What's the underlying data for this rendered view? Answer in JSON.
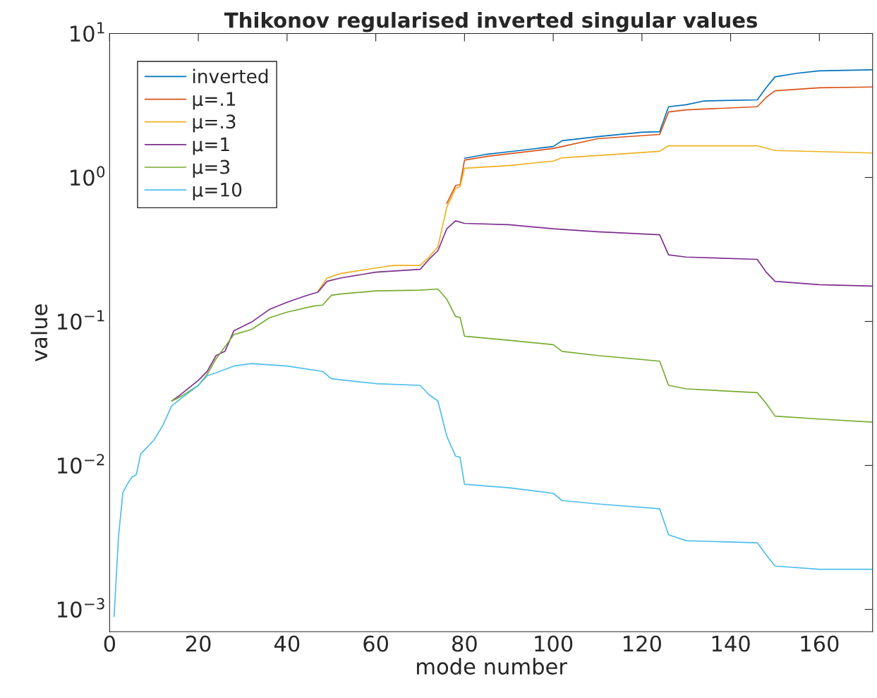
{
  "chart_data": {
    "type": "line",
    "title": "Thikonov regularised inverted singular values",
    "xlabel": "mode number",
    "ylabel": "value",
    "log": "y",
    "grid": false,
    "legend": "top left",
    "marker": "none",
    "line_style": "solid",
    "xlim": [
      0,
      172
    ],
    "xticks": [
      0,
      20,
      40,
      60,
      80,
      100,
      120,
      140,
      160
    ],
    "ylim": [
      0.0007,
      10
    ],
    "yticks": [
      {
        "value": 0.001,
        "label": "10$^{−3}$"
      },
      {
        "value": 0.01,
        "label": "10$^{−2}$"
      },
      {
        "value": 0.1,
        "label": "10$^{−1}$"
      },
      {
        "value": 1,
        "label": "10$^{0}$"
      },
      {
        "value": 10,
        "label": "10$^{1}$"
      }
    ],
    "series": [
      {
        "name": "inverted",
        "color": "#0072bd",
        "x": [
          80,
          85,
          90,
          100,
          102,
          110,
          120,
          124,
          126,
          130,
          134,
          146,
          148,
          150,
          155,
          160,
          172
        ],
        "values": [
          1.36,
          1.45,
          1.51,
          1.64,
          1.8,
          1.92,
          2.06,
          2.08,
          3.1,
          3.2,
          3.4,
          3.46,
          4.2,
          5.0,
          5.3,
          5.5,
          5.6
        ]
      },
      {
        "name": "μ=.1",
        "color": "#d95319",
        "x": [
          76,
          78,
          79,
          80,
          85,
          90,
          100,
          110,
          124,
          126,
          130,
          146,
          148,
          150,
          160,
          172
        ],
        "values": [
          0.66,
          0.88,
          0.89,
          1.32,
          1.4,
          1.46,
          1.59,
          1.86,
          1.99,
          2.85,
          2.95,
          3.1,
          3.6,
          4.0,
          4.2,
          4.25
        ]
      },
      {
        "name": "μ=.3",
        "color": "#edb120",
        "x": [
          47,
          49,
          52,
          56,
          60,
          64,
          70,
          72,
          74,
          76,
          78,
          79,
          80,
          90,
          100,
          102,
          110,
          124,
          126,
          146,
          150,
          172
        ],
        "values": [
          0.163,
          0.2,
          0.215,
          0.225,
          0.235,
          0.245,
          0.245,
          0.28,
          0.33,
          0.62,
          0.84,
          0.86,
          1.16,
          1.21,
          1.3,
          1.37,
          1.42,
          1.52,
          1.66,
          1.66,
          1.54,
          1.48
        ]
      },
      {
        "name": "μ=1",
        "color": "#7e2f8e",
        "x": [
          14,
          16,
          20,
          22,
          24,
          26,
          28,
          32,
          36,
          40,
          44,
          47,
          49,
          52,
          60,
          70,
          72,
          74,
          76,
          78,
          80,
          90,
          100,
          110,
          124,
          126,
          130,
          146,
          148,
          150,
          160,
          172
        ],
        "values": [
          0.028,
          0.031,
          0.039,
          0.045,
          0.058,
          0.062,
          0.086,
          0.099,
          0.121,
          0.136,
          0.15,
          0.16,
          0.19,
          0.2,
          0.22,
          0.23,
          0.27,
          0.31,
          0.44,
          0.5,
          0.48,
          0.47,
          0.44,
          0.42,
          0.4,
          0.29,
          0.28,
          0.27,
          0.22,
          0.19,
          0.18,
          0.176
        ]
      },
      {
        "name": "μ=3",
        "color": "#77ac30",
        "x": [
          14,
          16,
          20,
          22,
          24,
          28,
          32,
          36,
          40,
          46,
          48,
          50,
          52,
          60,
          70,
          74,
          76,
          78,
          79,
          80,
          90,
          100,
          102,
          110,
          124,
          126,
          130,
          146,
          148,
          150,
          160,
          172
        ],
        "values": [
          0.028,
          0.03,
          0.036,
          0.043,
          0.055,
          0.081,
          0.088,
          0.106,
          0.116,
          0.128,
          0.13,
          0.152,
          0.155,
          0.163,
          0.165,
          0.168,
          0.143,
          0.108,
          0.107,
          0.079,
          0.074,
          0.069,
          0.062,
          0.058,
          0.053,
          0.036,
          0.034,
          0.032,
          0.027,
          0.022,
          0.021,
          0.02
        ]
      },
      {
        "name": "μ=10",
        "color": "#4dbeee",
        "x": [
          1,
          2,
          3,
          4,
          5,
          6,
          7,
          10,
          12,
          14,
          16,
          20,
          22,
          24,
          28,
          32,
          40,
          48,
          50,
          60,
          70,
          72,
          74,
          76,
          78,
          79,
          80,
          90,
          100,
          102,
          110,
          124,
          126,
          130,
          146,
          148,
          150,
          160,
          172
        ],
        "values": [
          0.00089,
          0.0032,
          0.0065,
          0.0074,
          0.0083,
          0.0086,
          0.012,
          0.015,
          0.019,
          0.026,
          0.029,
          0.036,
          0.042,
          0.044,
          0.049,
          0.051,
          0.049,
          0.045,
          0.04,
          0.037,
          0.036,
          0.031,
          0.028,
          0.016,
          0.0116,
          0.0114,
          0.0074,
          0.007,
          0.0064,
          0.0057,
          0.0054,
          0.005,
          0.0033,
          0.003,
          0.0029,
          0.0024,
          0.002,
          0.0019,
          0.0019
        ]
      }
    ]
  }
}
